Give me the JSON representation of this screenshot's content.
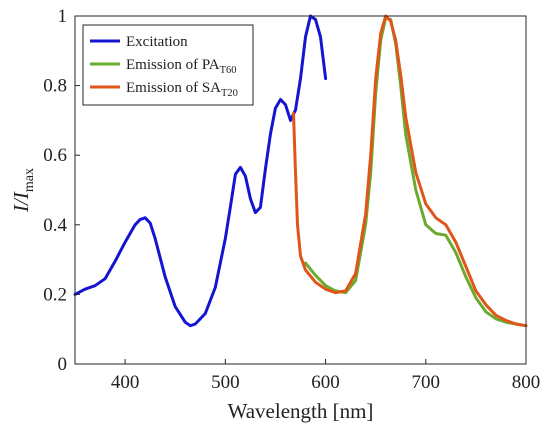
{
  "chart_data": {
    "type": "line",
    "xlabel": "Wavelength [nm]",
    "ylabel": {
      "main": "I/I",
      "sub": "max"
    },
    "xlim": [
      350,
      800
    ],
    "ylim": [
      0,
      1
    ],
    "xticks": [
      400,
      500,
      600,
      700,
      800
    ],
    "yticks": [
      0,
      0.2,
      0.4,
      0.6,
      0.8,
      1
    ],
    "ytick_labels": [
      "0",
      "0.2",
      "0.4",
      "0.6",
      "0.8",
      "1"
    ],
    "grid": false,
    "legend_position": "top-left",
    "series": [
      {
        "name": "Excitation",
        "legend": {
          "main": "Excitation",
          "sub": ""
        },
        "color": "#1414d2",
        "x": [
          350,
          360,
          370,
          380,
          390,
          400,
          410,
          415,
          420,
          425,
          430,
          440,
          450,
          460,
          465,
          470,
          480,
          490,
          500,
          505,
          510,
          515,
          520,
          525,
          530,
          535,
          540,
          545,
          550,
          555,
          560,
          565,
          570,
          575,
          580,
          585,
          590,
          595,
          600
        ],
        "y": [
          0.2,
          0.215,
          0.225,
          0.245,
          0.295,
          0.35,
          0.4,
          0.415,
          0.42,
          0.405,
          0.36,
          0.25,
          0.165,
          0.12,
          0.11,
          0.115,
          0.145,
          0.22,
          0.36,
          0.45,
          0.545,
          0.565,
          0.54,
          0.475,
          0.435,
          0.45,
          0.56,
          0.66,
          0.735,
          0.76,
          0.745,
          0.7,
          0.73,
          0.82,
          0.94,
          1.0,
          0.99,
          0.94,
          0.82
        ]
      },
      {
        "name": "Emission of PA_T60",
        "legend": {
          "main": "Emission of PA",
          "sub": "T60"
        },
        "color": "#6aaa2e",
        "x": [
          580,
          590,
          600,
          610,
          620,
          630,
          640,
          645,
          650,
          655,
          660,
          665,
          670,
          675,
          680,
          690,
          700,
          710,
          720,
          730,
          740,
          750,
          760,
          770,
          780,
          790,
          800
        ],
        "y": [
          0.29,
          0.255,
          0.225,
          0.21,
          0.205,
          0.24,
          0.4,
          0.55,
          0.78,
          0.93,
          0.995,
          0.99,
          0.92,
          0.8,
          0.66,
          0.5,
          0.4,
          0.375,
          0.37,
          0.32,
          0.25,
          0.19,
          0.15,
          0.13,
          0.12,
          0.115,
          0.11
        ]
      },
      {
        "name": "Emission of SA_T20",
        "legend": {
          "main": "Emission of SA",
          "sub": "T20"
        },
        "color": "#e0561a",
        "x": [
          568,
          570,
          572,
          575,
          580,
          590,
          600,
          610,
          620,
          630,
          640,
          645,
          650,
          655,
          660,
          665,
          670,
          675,
          680,
          690,
          700,
          710,
          720,
          730,
          740,
          750,
          760,
          770,
          780,
          790,
          800
        ],
        "y": [
          0.72,
          0.55,
          0.4,
          0.31,
          0.27,
          0.235,
          0.215,
          0.205,
          0.21,
          0.26,
          0.43,
          0.6,
          0.82,
          0.95,
          1.0,
          0.985,
          0.93,
          0.83,
          0.71,
          0.55,
          0.46,
          0.42,
          0.4,
          0.35,
          0.28,
          0.21,
          0.17,
          0.14,
          0.125,
          0.115,
          0.11
        ]
      }
    ]
  }
}
